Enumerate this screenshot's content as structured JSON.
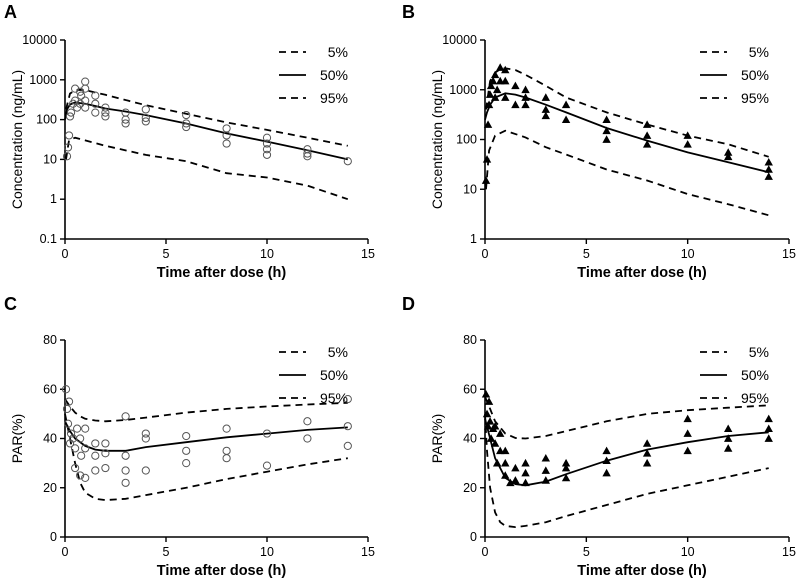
{
  "chart_data": [
    {
      "panel": "A",
      "type": "line",
      "yscale": "log",
      "xlabel": "Time after dose (h)",
      "ylabel": "Concentration (ng/mL)",
      "xlim": [
        0,
        15
      ],
      "ylim": [
        0.1,
        10000
      ],
      "xticks": [
        0,
        5,
        10,
        15
      ],
      "yticks": [
        0.1,
        1,
        10,
        100,
        1000,
        10000
      ],
      "ytick_labels": [
        "0.1",
        "1",
        "10",
        "100",
        "1000",
        "10000"
      ],
      "marker": "circle",
      "legend": {
        "position": "top-right",
        "entries": [
          {
            "label": "5%",
            "style": "dashed"
          },
          {
            "label": "50%",
            "style": "solid"
          },
          {
            "label": "95%",
            "style": "dashed"
          }
        ]
      },
      "series": [
        {
          "name": "5%",
          "style": "dashed",
          "x": [
            0.05,
            0.2,
            0.5,
            1,
            2,
            4,
            6,
            8,
            10,
            12,
            14
          ],
          "y": [
            10,
            30,
            35,
            30,
            22,
            13,
            9,
            4.5,
            3.5,
            2.2,
            1
          ]
        },
        {
          "name": "50%",
          "style": "solid",
          "x": [
            0,
            0.1,
            0.25,
            0.5,
            0.75,
            1,
            1.5,
            2,
            3,
            4,
            6,
            8,
            10,
            12,
            14
          ],
          "y": [
            100,
            180,
            240,
            270,
            260,
            250,
            220,
            190,
            160,
            130,
            80,
            45,
            28,
            17,
            10
          ]
        },
        {
          "name": "95%",
          "style": "dashed",
          "x": [
            0.05,
            0.25,
            0.5,
            0.75,
            1,
            2,
            4,
            6,
            8,
            10,
            12,
            14
          ],
          "y": [
            180,
            450,
            550,
            560,
            550,
            420,
            230,
            140,
            85,
            55,
            35,
            22
          ]
        }
      ],
      "observed": {
        "x": [
          0.1,
          0.15,
          0.2,
          0.25,
          0.3,
          0.4,
          0.5,
          0.5,
          0.6,
          0.75,
          0.75,
          0.8,
          1,
          1,
          1,
          1,
          1.5,
          1.5,
          1.5,
          2,
          2,
          2,
          3,
          3,
          3,
          4,
          4,
          4,
          6,
          6,
          6,
          8,
          8,
          8,
          10,
          10,
          10,
          10,
          12,
          12,
          12,
          14
        ],
        "y": [
          12,
          20,
          40,
          120,
          150,
          250,
          300,
          600,
          200,
          500,
          250,
          400,
          900,
          600,
          300,
          200,
          400,
          250,
          150,
          200,
          150,
          120,
          150,
          100,
          80,
          180,
          110,
          90,
          130,
          80,
          65,
          60,
          40,
          25,
          35,
          25,
          18,
          13,
          18,
          14,
          12,
          9
        ]
      }
    },
    {
      "panel": "B",
      "type": "line",
      "yscale": "log",
      "xlabel": "Time after dose (h)",
      "ylabel": "Concentration (ng/mL)",
      "xlim": [
        0,
        15
      ],
      "ylim": [
        1,
        10000
      ],
      "xticks": [
        0,
        5,
        10,
        15
      ],
      "yticks": [
        1,
        10,
        100,
        1000,
        10000
      ],
      "ytick_labels": [
        "1",
        "10",
        "100",
        "1000",
        "10000"
      ],
      "marker": "triangle",
      "legend": {
        "position": "top-right",
        "entries": [
          {
            "label": "5%",
            "style": "dashed"
          },
          {
            "label": "50%",
            "style": "solid"
          },
          {
            "label": "95%",
            "style": "dashed"
          }
        ]
      },
      "series": [
        {
          "name": "5%",
          "style": "dashed",
          "x": [
            0.05,
            0.2,
            0.5,
            1,
            2,
            3,
            4,
            6,
            8,
            10,
            12,
            14
          ],
          "y": [
            10,
            60,
            120,
            150,
            110,
            70,
            50,
            25,
            15,
            8,
            5,
            3
          ]
        },
        {
          "name": "50%",
          "style": "solid",
          "x": [
            0,
            0.1,
            0.25,
            0.5,
            1,
            1.5,
            2,
            3,
            4,
            6,
            8,
            10,
            12,
            14
          ],
          "y": [
            250,
            350,
            500,
            700,
            850,
            800,
            700,
            500,
            350,
            170,
            95,
            55,
            35,
            22
          ]
        },
        {
          "name": "95%",
          "style": "dashed",
          "x": [
            0.05,
            0.25,
            0.5,
            0.75,
            1,
            1.5,
            2,
            3,
            4,
            6,
            8,
            10,
            12,
            14
          ],
          "y": [
            400,
            1500,
            2200,
            2600,
            2700,
            2500,
            2000,
            1200,
            700,
            350,
            200,
            120,
            80,
            45
          ]
        }
      ],
      "observed": {
        "x": [
          0.05,
          0.1,
          0.15,
          0.2,
          0.25,
          0.3,
          0.4,
          0.5,
          0.5,
          0.6,
          0.75,
          0.75,
          1,
          1,
          1,
          1.5,
          1.5,
          2,
          2,
          2,
          3,
          3,
          3,
          4,
          4,
          6,
          6,
          6,
          8,
          8,
          8,
          10,
          10,
          12,
          12,
          14,
          14,
          14
        ],
        "y": [
          15,
          40,
          200,
          500,
          800,
          1200,
          1500,
          2000,
          700,
          1000,
          2800,
          1500,
          2500,
          1500,
          700,
          1200,
          500,
          1000,
          700,
          500,
          700,
          400,
          300,
          500,
          250,
          250,
          150,
          100,
          200,
          120,
          80,
          120,
          80,
          55,
          45,
          35,
          25,
          18
        ]
      }
    },
    {
      "panel": "C",
      "type": "line",
      "yscale": "linear",
      "xlabel": "Time after dose (h)",
      "ylabel": "PAR(%)",
      "xlim": [
        0,
        15
      ],
      "ylim": [
        0,
        80
      ],
      "xticks": [
        0,
        5,
        10,
        15
      ],
      "yticks": [
        0,
        20,
        40,
        60,
        80
      ],
      "ytick_labels": [
        "0",
        "20",
        "40",
        "60",
        "80"
      ],
      "marker": "circle",
      "legend": {
        "position": "top-right",
        "entries": [
          {
            "label": "5%",
            "style": "dashed"
          },
          {
            "label": "50%",
            "style": "solid"
          },
          {
            "label": "95%",
            "style": "dashed"
          }
        ]
      },
      "series": [
        {
          "name": "5%",
          "style": "dashed",
          "x": [
            0,
            0.25,
            0.5,
            0.75,
            1,
            1.5,
            2,
            3,
            4,
            6,
            8,
            10,
            12,
            14
          ],
          "y": [
            50,
            40,
            30,
            22,
            18,
            15.5,
            15,
            15.5,
            17,
            20,
            23.5,
            26.5,
            29.5,
            32
          ]
        },
        {
          "name": "50%",
          "style": "solid",
          "x": [
            0,
            0.25,
            0.5,
            1,
            1.5,
            2,
            3,
            4,
            6,
            8,
            10,
            12,
            14
          ],
          "y": [
            47,
            43,
            40,
            37,
            35.5,
            35,
            35,
            36.5,
            38.5,
            40.5,
            42,
            43.5,
            44.5
          ]
        },
        {
          "name": "95%",
          "style": "dashed",
          "x": [
            0,
            0.25,
            0.5,
            0.75,
            1,
            1.5,
            2,
            3,
            4,
            6,
            8,
            10,
            12,
            14
          ],
          "y": [
            56,
            53,
            50.5,
            49,
            48,
            47.3,
            47,
            47.5,
            48.5,
            50.5,
            52,
            53,
            53.8,
            54.5
          ]
        }
      ],
      "observed": {
        "x": [
          0.05,
          0.1,
          0.15,
          0.2,
          0.25,
          0.3,
          0.4,
          0.5,
          0.5,
          0.6,
          0.75,
          0.75,
          0.8,
          1,
          1,
          1,
          1.5,
          1.5,
          1.5,
          2,
          2,
          2,
          3,
          3,
          3,
          3,
          4,
          4,
          4,
          6,
          6,
          6,
          8,
          8,
          8,
          10,
          10,
          12,
          12,
          14,
          14,
          14
        ],
        "y": [
          60,
          52,
          46,
          55,
          38,
          42,
          40,
          36,
          28,
          44,
          25,
          40,
          33,
          24,
          36,
          44,
          27,
          33,
          38,
          28,
          34,
          38,
          22,
          27,
          33,
          49,
          27,
          40,
          42,
          30,
          35,
          41,
          32,
          35,
          44,
          29,
          42,
          40,
          47,
          37,
          45,
          56
        ]
      }
    },
    {
      "panel": "D",
      "type": "line",
      "yscale": "linear",
      "xlabel": "Time after dose (h)",
      "ylabel": "PAR(%)",
      "xlim": [
        0,
        15
      ],
      "ylim": [
        0,
        80
      ],
      "xticks": [
        0,
        5,
        10,
        15
      ],
      "yticks": [
        0,
        20,
        40,
        60,
        80
      ],
      "ytick_labels": [
        "0",
        "20",
        "40",
        "60",
        "80"
      ],
      "marker": "triangle",
      "legend": {
        "position": "top-right",
        "entries": [
          {
            "label": "5%",
            "style": "dashed"
          },
          {
            "label": "50%",
            "style": "solid"
          },
          {
            "label": "95%",
            "style": "dashed"
          }
        ]
      },
      "series": [
        {
          "name": "5%",
          "style": "dashed",
          "x": [
            0,
            0.1,
            0.25,
            0.5,
            0.75,
            1,
            1.5,
            2,
            3,
            4,
            6,
            8,
            10,
            12,
            14
          ],
          "y": [
            50,
            35,
            20,
            10,
            6,
            4.5,
            4,
            4.5,
            6,
            8.5,
            13,
            17.5,
            21,
            24.5,
            28
          ]
        },
        {
          "name": "50%",
          "style": "solid",
          "x": [
            0,
            0.25,
            0.5,
            1,
            1.5,
            2,
            3,
            4,
            6,
            8,
            10,
            12,
            14
          ],
          "y": [
            48,
            40,
            32,
            24,
            21.5,
            21,
            22.5,
            25.5,
            31,
            35.5,
            38.5,
            41,
            42.5
          ]
        },
        {
          "name": "95%",
          "style": "dashed",
          "x": [
            0,
            0.25,
            0.5,
            1,
            1.5,
            2,
            3,
            4,
            6,
            8,
            10,
            12,
            14
          ],
          "y": [
            57,
            52,
            47,
            42,
            40.2,
            40,
            41,
            43,
            47,
            50,
            51.5,
            52.5,
            53.5
          ]
        }
      ],
      "observed": {
        "x": [
          0.05,
          0.1,
          0.15,
          0.2,
          0.25,
          0.3,
          0.4,
          0.5,
          0.5,
          0.6,
          0.75,
          0.75,
          1,
          1,
          1,
          1.25,
          1.5,
          1.5,
          2,
          2,
          2,
          3,
          3,
          3,
          4,
          4,
          4,
          6,
          6,
          6,
          8,
          8,
          8,
          10,
          10,
          10,
          12,
          12,
          12,
          14,
          14,
          14
        ],
        "y": [
          58,
          50,
          45,
          55,
          47,
          40,
          44,
          38,
          45,
          30,
          35,
          42,
          25,
          30,
          35,
          22,
          28,
          23,
          22,
          26,
          30,
          23,
          27,
          32,
          24,
          28,
          30,
          26,
          31,
          35,
          30,
          34,
          38,
          35,
          42,
          48,
          36,
          40,
          44,
          40,
          44,
          48
        ]
      }
    }
  ]
}
